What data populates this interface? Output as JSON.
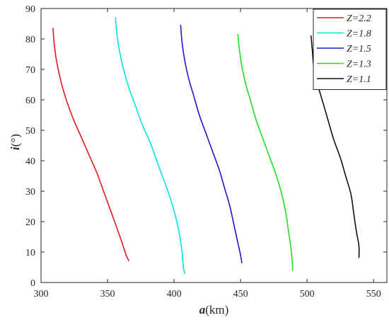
{
  "chart_data": {
    "type": "line",
    "xlabel_main": "a",
    "xlabel_unit": "(km)",
    "ylabel_main": "i",
    "ylabel_unit": "(°)",
    "xlim": [
      300,
      560
    ],
    "ylim": [
      0,
      90
    ],
    "xticks": [
      300,
      350,
      400,
      450,
      500,
      550
    ],
    "yticks": [
      0,
      10,
      20,
      30,
      40,
      50,
      60,
      70,
      80,
      90
    ],
    "grid": false,
    "legend_position": "top-right",
    "series": [
      {
        "name": "Z=2.2",
        "color": "#e41a1c",
        "points": [
          [
            309,
            83.5
          ],
          [
            310,
            78
          ],
          [
            312,
            72
          ],
          [
            315,
            66
          ],
          [
            319,
            60
          ],
          [
            324,
            54
          ],
          [
            330,
            48
          ],
          [
            336,
            42
          ],
          [
            342,
            36
          ],
          [
            347,
            30
          ],
          [
            352,
            24
          ],
          [
            357,
            18
          ],
          [
            361,
            13
          ],
          [
            364,
            9
          ],
          [
            366,
            7.2
          ]
        ]
      },
      {
        "name": "Z=1.8",
        "color": "#00e5e5",
        "points": [
          [
            356,
            87
          ],
          [
            357,
            82
          ],
          [
            359,
            76
          ],
          [
            362,
            70
          ],
          [
            366,
            64
          ],
          [
            371,
            58
          ],
          [
            376,
            52
          ],
          [
            382,
            46
          ],
          [
            387,
            40
          ],
          [
            392,
            34
          ],
          [
            397,
            28
          ],
          [
            401,
            22
          ],
          [
            404,
            16
          ],
          [
            406,
            10
          ],
          [
            407,
            5
          ],
          [
            408,
            3
          ]
        ]
      },
      {
        "name": "Z=1.5",
        "color": "#1a1acc",
        "points": [
          [
            405,
            84.5
          ],
          [
            406,
            79
          ],
          [
            408,
            73
          ],
          [
            411,
            67
          ],
          [
            415,
            61
          ],
          [
            419,
            55
          ],
          [
            424,
            49
          ],
          [
            429,
            43
          ],
          [
            434,
            37
          ],
          [
            438,
            31
          ],
          [
            442,
            25
          ],
          [
            445,
            19
          ],
          [
            448,
            13
          ],
          [
            450,
            9
          ],
          [
            451,
            6.5
          ]
        ]
      },
      {
        "name": "Z=1.3",
        "color": "#22dd22",
        "points": [
          [
            448,
            81.5
          ],
          [
            449,
            77
          ],
          [
            451,
            71
          ],
          [
            454,
            65
          ],
          [
            458,
            59
          ],
          [
            462,
            53
          ],
          [
            467,
            47
          ],
          [
            472,
            41
          ],
          [
            477,
            35
          ],
          [
            481,
            29
          ],
          [
            484,
            23
          ],
          [
            486,
            17
          ],
          [
            488,
            11
          ],
          [
            489,
            6
          ],
          [
            489,
            4
          ]
        ]
      },
      {
        "name": "Z=1.1",
        "color": "#111111",
        "points": [
          [
            503,
            81
          ],
          [
            504,
            76
          ],
          [
            505,
            71
          ],
          [
            508,
            65
          ],
          [
            512,
            59
          ],
          [
            516,
            53
          ],
          [
            520,
            47
          ],
          [
            525,
            41
          ],
          [
            529,
            35
          ],
          [
            533,
            29
          ],
          [
            535,
            23
          ],
          [
            537,
            17
          ],
          [
            539,
            12
          ],
          [
            539,
            8.2
          ]
        ]
      }
    ]
  }
}
